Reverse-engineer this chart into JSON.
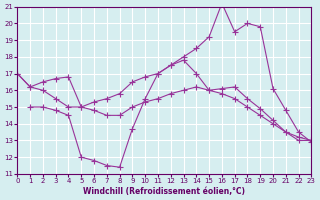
{
  "title": "",
  "xlabel": "Windchill (Refroidissement éolien,°C)",
  "ylabel": "",
  "background_color": "#d6eef0",
  "grid_color": "#ffffff",
  "line_color": "#993399",
  "xlim": [
    0,
    23
  ],
  "ylim": [
    11,
    21
  ],
  "xticks": [
    0,
    1,
    2,
    3,
    4,
    5,
    6,
    7,
    8,
    9,
    10,
    11,
    12,
    13,
    14,
    15,
    16,
    17,
    18,
    19,
    20,
    21,
    22,
    23
  ],
  "yticks": [
    11,
    12,
    13,
    14,
    15,
    16,
    17,
    18,
    19,
    20,
    21
  ],
  "line1_x": [
    0,
    1,
    2,
    3,
    4,
    5,
    6,
    7,
    8,
    9,
    10,
    11,
    12,
    13,
    14,
    15,
    16,
    17,
    18,
    19,
    20,
    21,
    22,
    23
  ],
  "line1_y": [
    17.0,
    16.2,
    16.5,
    16.7,
    16.8,
    15.0,
    15.3,
    15.5,
    15.8,
    16.5,
    16.8,
    17.0,
    17.5,
    17.8,
    17.0,
    16.0,
    16.1,
    16.2,
    15.5,
    14.9,
    14.2,
    13.5,
    13.0,
    13.0
  ],
  "line2_x": [
    0,
    1,
    2,
    3,
    4,
    5,
    6,
    7,
    8,
    9,
    10,
    11,
    12,
    13,
    14,
    15,
    16,
    17,
    18,
    19,
    20,
    21,
    22,
    23
  ],
  "line2_y": [
    17.0,
    16.2,
    16.0,
    15.5,
    15.0,
    15.0,
    14.8,
    14.5,
    14.5,
    15.0,
    15.3,
    15.5,
    15.8,
    16.0,
    16.2,
    16.0,
    15.8,
    15.5,
    15.0,
    14.5,
    14.0,
    13.5,
    13.2,
    13.0
  ],
  "line3_x": [
    1,
    2,
    3,
    4,
    5,
    6,
    7,
    8,
    9,
    10,
    11,
    12,
    13,
    14,
    15,
    16,
    17,
    18,
    19,
    20,
    21,
    22,
    23
  ],
  "line3_y": [
    15.0,
    15.0,
    14.8,
    14.5,
    12.0,
    11.8,
    11.5,
    11.4,
    13.7,
    15.5,
    17.0,
    17.5,
    18.0,
    18.5,
    19.2,
    21.2,
    19.5,
    20.0,
    19.8,
    16.1,
    14.8,
    13.5,
    12.9
  ]
}
